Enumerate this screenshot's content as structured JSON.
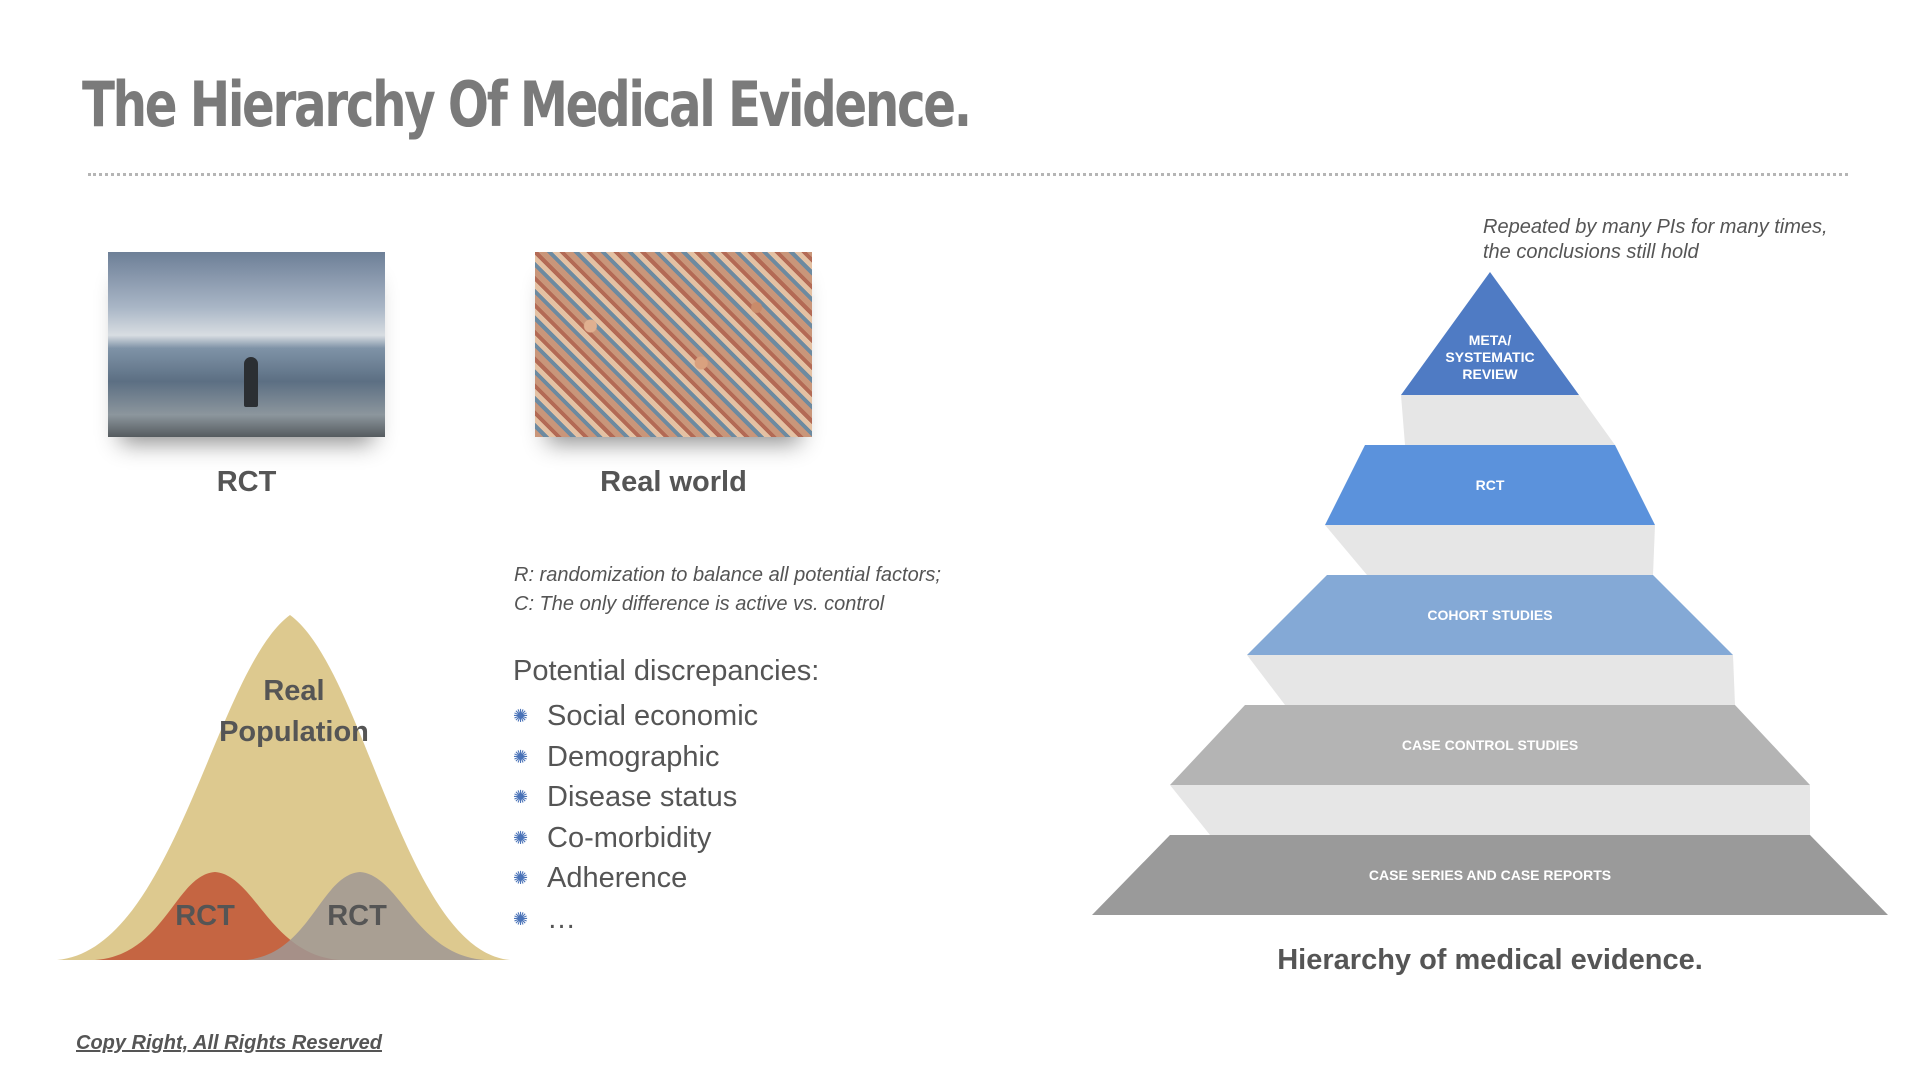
{
  "title": "The Hierarchy Of Medical Evidence.",
  "photos": {
    "rct_caption": "RCT",
    "real_caption": "Real world"
  },
  "bell": {
    "big_label_line1": "Real",
    "big_label_line2": "Population",
    "small_left_label": "RCT",
    "small_right_label": "RCT",
    "colors": {
      "big": "#ddc98f",
      "left": "#c25a3a",
      "right": "#a09894"
    }
  },
  "notes": {
    "r": "R: randomization to balance all potential factors;",
    "c": "C: The only difference is active vs. control"
  },
  "discrepancies": {
    "title": "Potential discrepancies:",
    "items": [
      "Social economic",
      "Demographic",
      "Disease status",
      "Co-morbidity",
      "Adherence",
      "…"
    ],
    "bullet_icon": "asterisk-bullet-icon"
  },
  "pyramid": {
    "note_line1": "Repeated by many PIs for many times,",
    "note_line2": "the conclusions still hold",
    "levels": [
      {
        "lines": [
          "META/",
          "SYSTEMATIC",
          "REVIEW"
        ],
        "color": "#4f7bc4"
      },
      {
        "lines": [
          "RCT"
        ],
        "color": "#5b92dc"
      },
      {
        "lines": [
          "COHORT STUDIES"
        ],
        "color": "#84a9d6"
      },
      {
        "lines": [
          "CASE CONTROL STUDIES"
        ],
        "color": "#b4b4b4"
      },
      {
        "lines": [
          "CASE SERIES AND CASE REPORTS"
        ],
        "color": "#9a9a9a"
      }
    ],
    "caption": "Hierarchy of medical evidence."
  },
  "copyright": "Copy Right, All Rights Reserved"
}
